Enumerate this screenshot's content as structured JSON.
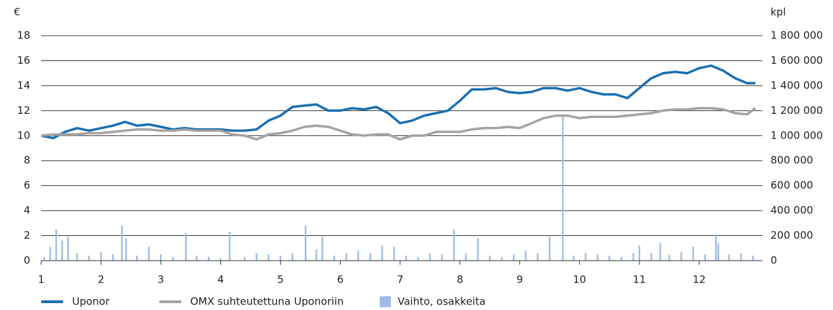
{
  "chart_data": {
    "type": "line",
    "y_unit": "€",
    "y2_unit": "kpl",
    "x": [
      1.0,
      1.2,
      1.4,
      1.6,
      1.8,
      2.0,
      2.2,
      2.4,
      2.6,
      2.8,
      3.0,
      3.2,
      3.4,
      3.6,
      3.8,
      4.0,
      4.2,
      4.4,
      4.6,
      4.8,
      5.0,
      5.2,
      5.4,
      5.6,
      5.8,
      6.0,
      6.2,
      6.4,
      6.6,
      6.8,
      7.0,
      7.2,
      7.4,
      7.6,
      7.8,
      8.0,
      8.2,
      8.4,
      8.6,
      8.8,
      9.0,
      9.2,
      9.4,
      9.6,
      9.8,
      10.0,
      10.2,
      10.4,
      10.6,
      10.8,
      11.0,
      11.2,
      11.4,
      11.6,
      11.8,
      12.0,
      12.2,
      12.4,
      12.6,
      12.8,
      12.94
    ],
    "xlim": [
      1,
      12.94
    ],
    "xticks": [
      1,
      2,
      3,
      4,
      5,
      6,
      7,
      8,
      9,
      10,
      11,
      12
    ],
    "ylim": [
      0,
      18
    ],
    "yticks": [
      0,
      2,
      4,
      6,
      8,
      10,
      12,
      14,
      16,
      18
    ],
    "y2lim": [
      0,
      1800000
    ],
    "y2ticks": [
      {
        "value": 0,
        "label": "0"
      },
      {
        "value": 200000,
        "label": "200 000"
      },
      {
        "value": 400000,
        "label": "400 000"
      },
      {
        "value": 600000,
        "label": "600 000"
      },
      {
        "value": 800000,
        "label": "800 000"
      },
      {
        "value": 1000000,
        "label": "1 000 000"
      },
      {
        "value": 1200000,
        "label": "1 200 000"
      },
      {
        "value": 1400000,
        "label": "1 400 000"
      },
      {
        "value": 1600000,
        "label": "1 600 000"
      },
      {
        "value": 1800000,
        "label": "1 800 000"
      }
    ],
    "grid": true,
    "legend": "bottom",
    "series": [
      {
        "name": "Uponor",
        "color": "#1b6fb0",
        "type": "line",
        "values": [
          10.0,
          9.8,
          10.3,
          10.6,
          10.4,
          10.6,
          10.8,
          11.1,
          10.8,
          10.9,
          10.7,
          10.5,
          10.6,
          10.5,
          10.5,
          10.5,
          10.4,
          10.4,
          10.5,
          11.2,
          11.6,
          12.3,
          12.4,
          12.5,
          12.0,
          12.0,
          12.2,
          12.1,
          12.3,
          11.8,
          11.0,
          11.2,
          11.6,
          11.8,
          12.0,
          12.8,
          13.7,
          13.7,
          13.8,
          13.5,
          13.4,
          13.5,
          13.8,
          13.8,
          13.6,
          13.8,
          13.5,
          13.3,
          13.3,
          13.0,
          13.8,
          14.6,
          15.0,
          15.1,
          15.0,
          15.4,
          15.6,
          15.2,
          14.6,
          14.2,
          14.2
        ]
      },
      {
        "name": "OMX suhteutettuna Uponoriin",
        "color": "#a3a3a3",
        "type": "line",
        "values": [
          10.0,
          10.1,
          10.1,
          10.1,
          10.2,
          10.2,
          10.3,
          10.4,
          10.5,
          10.5,
          10.4,
          10.4,
          10.5,
          10.4,
          10.4,
          10.4,
          10.1,
          10.0,
          9.7,
          10.1,
          10.2,
          10.4,
          10.7,
          10.8,
          10.7,
          10.4,
          10.1,
          10.0,
          10.1,
          10.1,
          9.7,
          10.0,
          10.0,
          10.3,
          10.3,
          10.3,
          10.5,
          10.6,
          10.6,
          10.7,
          10.6,
          11.0,
          11.4,
          11.6,
          11.6,
          11.4,
          11.5,
          11.5,
          11.5,
          11.6,
          11.7,
          11.8,
          12.0,
          12.1,
          12.1,
          12.2,
          12.2,
          12.1,
          11.8,
          11.7,
          12.2
        ]
      },
      {
        "name": "Vaihto, osakkeita",
        "color": "#9dbde6",
        "type": "bar",
        "axis": "y2",
        "x": [
          1.05,
          1.15,
          1.25,
          1.35,
          1.45,
          1.6,
          1.8,
          2.0,
          2.2,
          2.35,
          2.42,
          2.6,
          2.8,
          3.0,
          3.2,
          3.42,
          3.6,
          3.8,
          4.0,
          4.15,
          4.4,
          4.6,
          4.8,
          5.0,
          5.2,
          5.42,
          5.6,
          5.7,
          5.9,
          6.1,
          6.3,
          6.5,
          6.7,
          6.9,
          7.1,
          7.3,
          7.5,
          7.7,
          7.9,
          8.1,
          8.3,
          8.5,
          8.7,
          8.9,
          9.1,
          9.3,
          9.5,
          9.72,
          9.9,
          10.1,
          10.3,
          10.5,
          10.7,
          10.9,
          11.0,
          11.2,
          11.35,
          11.5,
          11.7,
          11.9,
          12.1,
          12.28,
          12.32,
          12.5,
          12.7,
          12.9
        ],
        "values": [
          30000,
          110000,
          250000,
          160000,
          190000,
          60000,
          40000,
          70000,
          50000,
          280000,
          180000,
          40000,
          110000,
          50000,
          30000,
          220000,
          40000,
          30000,
          20000,
          230000,
          30000,
          60000,
          50000,
          40000,
          60000,
          280000,
          90000,
          190000,
          40000,
          60000,
          80000,
          60000,
          120000,
          110000,
          40000,
          30000,
          60000,
          50000,
          250000,
          60000,
          180000,
          40000,
          30000,
          50000,
          80000,
          60000,
          190000,
          1170000,
          40000,
          60000,
          50000,
          40000,
          30000,
          60000,
          120000,
          60000,
          140000,
          50000,
          70000,
          110000,
          50000,
          210000,
          140000,
          50000,
          60000,
          40000
        ]
      }
    ]
  }
}
